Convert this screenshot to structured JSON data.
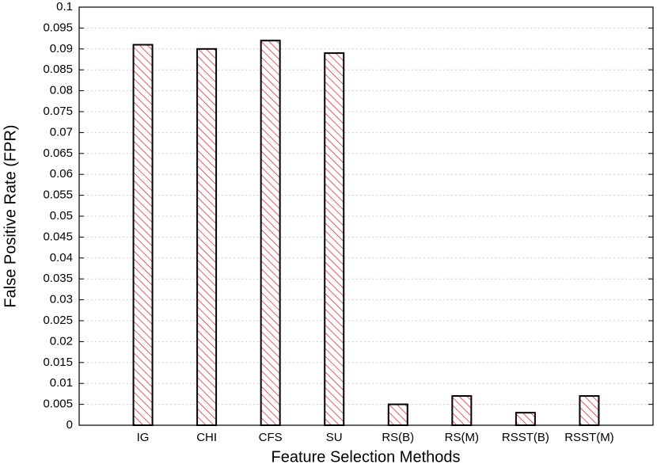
{
  "chart_data": {
    "type": "bar",
    "xlabel": "Feature Selection Methods",
    "ylabel": "False Positive Rate (FPR)",
    "categories": [
      "IG",
      "CHI",
      "CFS",
      "SU",
      "RS(B)",
      "RS(M)",
      "RSST(B)",
      "RSST(M)"
    ],
    "values": [
      0.091,
      0.09,
      0.092,
      0.089,
      0.005,
      0.007,
      0.003,
      0.007
    ],
    "color": "#e8000b",
    "ylim": [
      0,
      0.1
    ],
    "yticks": [
      0,
      0.005,
      0.01,
      0.015,
      0.02,
      0.025,
      0.03,
      0.035,
      0.04,
      0.045,
      0.05,
      0.055,
      0.06,
      0.065,
      0.07,
      0.075,
      0.08,
      0.085,
      0.09,
      0.095,
      0.1
    ],
    "grid": true
  }
}
